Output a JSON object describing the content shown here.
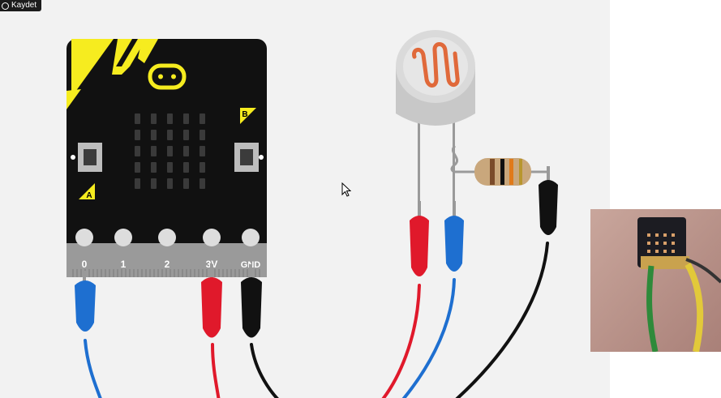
{
  "recording_badge": {
    "label": "Kaydet",
    "icon": "record-icon"
  },
  "microbit": {
    "pins": [
      {
        "id": "pin0",
        "label": "0"
      },
      {
        "id": "pin1",
        "label": "1"
      },
      {
        "id": "pin2",
        "label": "2"
      },
      {
        "id": "pin3v",
        "label": "3V"
      },
      {
        "id": "gnd",
        "label": "GND"
      }
    ],
    "button_a_label": "A",
    "button_b_label": "B",
    "led_grid": "5x5"
  },
  "components": {
    "ldr": "light-dependent-resistor",
    "resistor": "resistor"
  },
  "wires": [
    {
      "from": "pin0",
      "color": "#1e6fd0"
    },
    {
      "from": "pin3v",
      "color": "#e0192b"
    },
    {
      "from": "gnd",
      "color": "#111111"
    }
  ],
  "colors": {
    "board": "#111111",
    "board_accent": "#f6ec1f",
    "edge_connector": "#9a9a9a",
    "canvas_bg": "#f2f2f2"
  },
  "webcam_overlay": {
    "icon": "webcam-feed"
  }
}
